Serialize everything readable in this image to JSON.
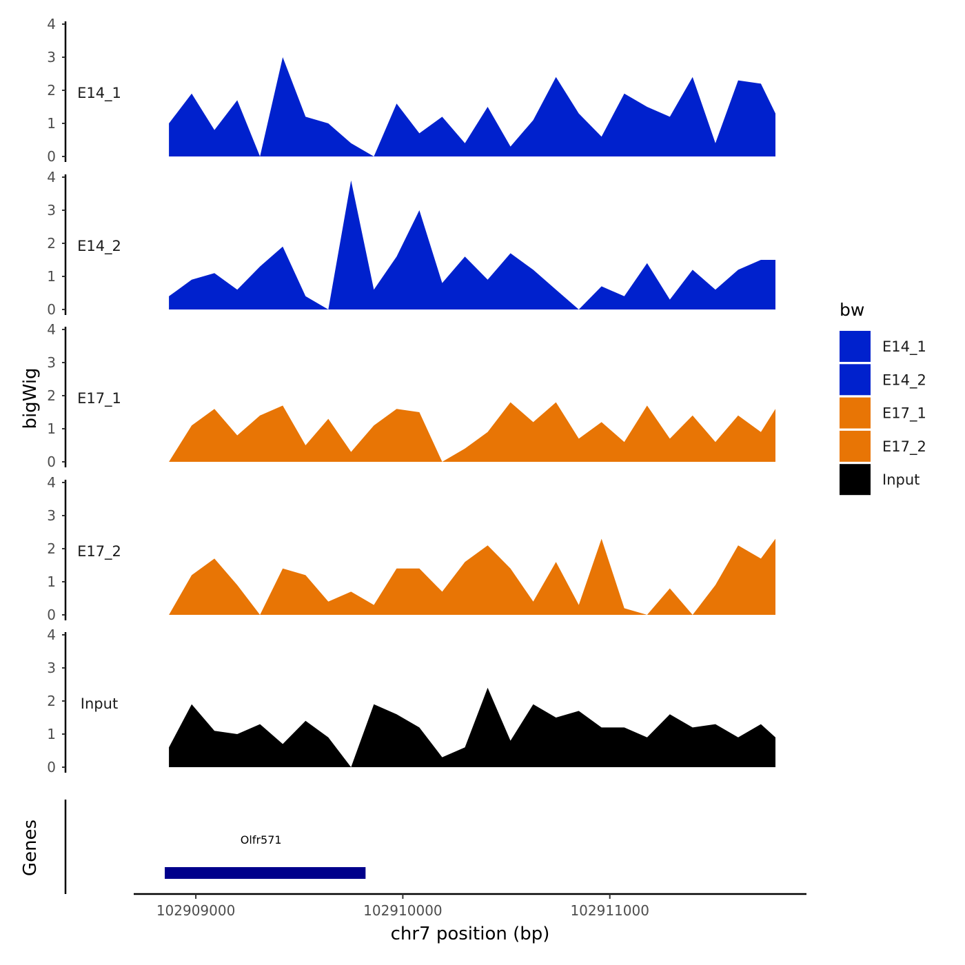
{
  "chart_data": {
    "type": "area",
    "xlabel": "chr7 position (bp)",
    "ylabel": "bigWig",
    "chromosome": "chr7",
    "xlim": [
      102908700,
      102911950
    ],
    "x_ticks": [
      102909000,
      102910000,
      102911000
    ],
    "x_tick_labels": [
      "102909000",
      "102910000",
      "102911000"
    ],
    "ylim": [
      0,
      4
    ],
    "y_ticks": [
      "0",
      "1",
      "2",
      "3",
      "4"
    ],
    "colors": {
      "E14": "#0021CD",
      "E17": "#E87505",
      "Input": "#000000",
      "gene": "#00008B"
    },
    "x": [
      102908870,
      102908980,
      102909090,
      102909200,
      102909310,
      102909420,
      102909530,
      102909640,
      102909750,
      102909860,
      102909970,
      102910080,
      102910190,
      102910300,
      102910410,
      102910520,
      102910630,
      102910740,
      102910850,
      102910960,
      102911070,
      102911180,
      102911290,
      102911400,
      102911510,
      102911620,
      102911730,
      102911800
    ],
    "series": [
      {
        "name": "E14_1",
        "group": "E14",
        "values": [
          1.0,
          1.9,
          0.8,
          1.7,
          0.0,
          3.0,
          1.2,
          1.0,
          0.4,
          0.0,
          1.6,
          0.7,
          1.2,
          0.4,
          1.5,
          0.3,
          1.1,
          2.4,
          1.3,
          0.6,
          1.9,
          1.5,
          1.2,
          2.4,
          0.4,
          2.3,
          2.2,
          1.3
        ]
      },
      {
        "name": "E14_2",
        "group": "E14",
        "values": [
          0.4,
          0.9,
          1.1,
          0.6,
          1.3,
          1.9,
          0.4,
          0.0,
          3.9,
          0.6,
          1.6,
          3.0,
          0.8,
          1.6,
          0.9,
          1.7,
          1.2,
          0.6,
          0.0,
          0.7,
          0.4,
          1.4,
          0.3,
          1.2,
          0.6,
          1.2,
          1.5,
          1.5
        ]
      },
      {
        "name": "E17_1",
        "group": "E17",
        "values": [
          0.0,
          1.1,
          1.6,
          0.8,
          1.4,
          1.7,
          0.5,
          1.3,
          0.3,
          1.1,
          1.6,
          1.5,
          0.0,
          0.4,
          0.9,
          1.8,
          1.2,
          1.8,
          0.7,
          1.2,
          0.6,
          1.7,
          0.7,
          1.4,
          0.6,
          1.4,
          0.9,
          1.6
        ]
      },
      {
        "name": "E17_2",
        "group": "E17",
        "values": [
          0.0,
          1.2,
          1.7,
          0.9,
          0.0,
          1.4,
          1.2,
          0.4,
          0.7,
          0.3,
          1.4,
          1.4,
          0.7,
          1.6,
          2.1,
          1.4,
          0.4,
          1.6,
          0.3,
          2.3,
          0.2,
          0.0,
          0.8,
          0.0,
          0.9,
          2.1,
          1.7,
          2.3
        ]
      },
      {
        "name": "Input",
        "group": "Input",
        "values": [
          0.6,
          1.9,
          1.1,
          1.0,
          1.3,
          0.7,
          1.4,
          0.9,
          0.0,
          1.9,
          1.6,
          1.2,
          0.3,
          0.6,
          2.4,
          0.8,
          1.9,
          1.5,
          1.7,
          1.2,
          1.2,
          0.9,
          1.6,
          1.2,
          1.3,
          0.9,
          1.3,
          0.9
        ]
      }
    ],
    "legend": {
      "title": "bw",
      "position": "right",
      "entries": [
        {
          "label": "E14_1",
          "color": "#0021CD"
        },
        {
          "label": "E14_2",
          "color": "#0021CD"
        },
        {
          "label": "E17_1",
          "color": "#E87505"
        },
        {
          "label": "E17_2",
          "color": "#E87505"
        },
        {
          "label": "Input",
          "color": "#000000"
        }
      ]
    },
    "genes_track": {
      "label": "Genes",
      "genes": [
        {
          "name": "Olfr571",
          "start": 102908850,
          "end": 102909820
        }
      ]
    }
  }
}
